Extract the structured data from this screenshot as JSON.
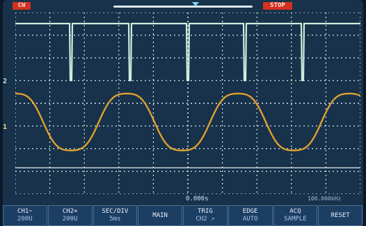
{
  "status": {
    "mode": "CW",
    "run_state": "STOP"
  },
  "channel_markers": {
    "ch2": "2",
    "ch1": "1"
  },
  "info": {
    "time_position": "0.000s",
    "trigger_frequency": "100.000kHz"
  },
  "softkeys": [
    {
      "line1": "CH1~",
      "line2": "200U"
    },
    {
      "line1": "CH2=",
      "line2": "200U"
    },
    {
      "line1": "SEC/DIV",
      "line2": "5ms"
    },
    {
      "line1": "MAIN",
      "line2": ""
    },
    {
      "line1": "TRIG",
      "line2": "CH2 ↗"
    },
    {
      "line1": "EDGE",
      "line2": "AUTO"
    },
    {
      "line1": "ACQ",
      "line2": "SAMPLE"
    },
    {
      "line1": "RESET",
      "line2": ""
    }
  ],
  "colors": {
    "ch1_trace": "#e0a030",
    "ch2_trace": "#cfeede",
    "grid": "#dbe6f0",
    "background": "#17324a",
    "accent_red": "#d3301f"
  }
}
